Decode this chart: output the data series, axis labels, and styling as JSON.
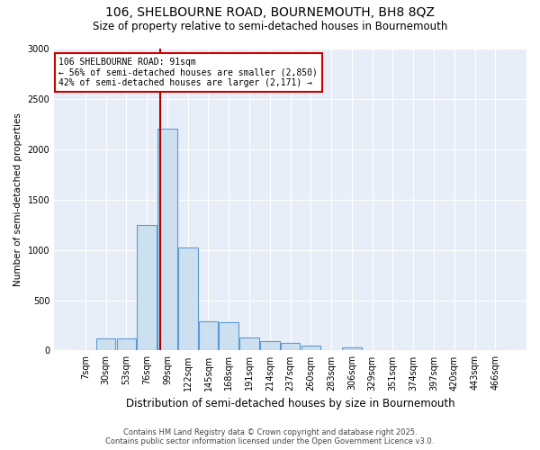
{
  "title": "106, SHELBOURNE ROAD, BOURNEMOUTH, BH8 8QZ",
  "subtitle": "Size of property relative to semi-detached houses in Bournemouth",
  "xlabel": "Distribution of semi-detached houses by size in Bournemouth",
  "ylabel": "Number of semi-detached properties",
  "bin_labels": [
    "7sqm",
    "30sqm",
    "53sqm",
    "76sqm",
    "99sqm",
    "122sqm",
    "145sqm",
    "168sqm",
    "191sqm",
    "214sqm",
    "237sqm",
    "260sqm",
    "283sqm",
    "306sqm",
    "329sqm",
    "351sqm",
    "374sqm",
    "397sqm",
    "420sqm",
    "443sqm",
    "466sqm"
  ],
  "bar_values": [
    5,
    120,
    120,
    1250,
    2200,
    1020,
    290,
    285,
    130,
    90,
    75,
    50,
    5,
    30,
    5,
    5,
    5,
    5,
    5,
    5,
    5
  ],
  "bar_color": "#cce0f0",
  "bar_edge_color": "#5b9bd5",
  "property_label": "106 SHELBOURNE ROAD: 91sqm",
  "pct_smaller": 56,
  "count_smaller": 2850,
  "pct_larger": 42,
  "count_larger": 2171,
  "vline_color": "#aa0000",
  "annotation_box_color": "#cc0000",
  "ylim": [
    0,
    3000
  ],
  "yticks": [
    0,
    500,
    1000,
    1500,
    2000,
    2500,
    3000
  ],
  "background_color": "#e8eef8",
  "grid_color": "#ffffff",
  "footer_line1": "Contains HM Land Registry data © Crown copyright and database right 2025.",
  "footer_line2": "Contains public sector information licensed under the Open Government Licence v3.0.",
  "title_fontsize": 10,
  "subtitle_fontsize": 8.5,
  "xlabel_fontsize": 8.5,
  "ylabel_fontsize": 7.5,
  "tick_fontsize": 7,
  "footer_fontsize": 6,
  "ann_fontsize": 7
}
